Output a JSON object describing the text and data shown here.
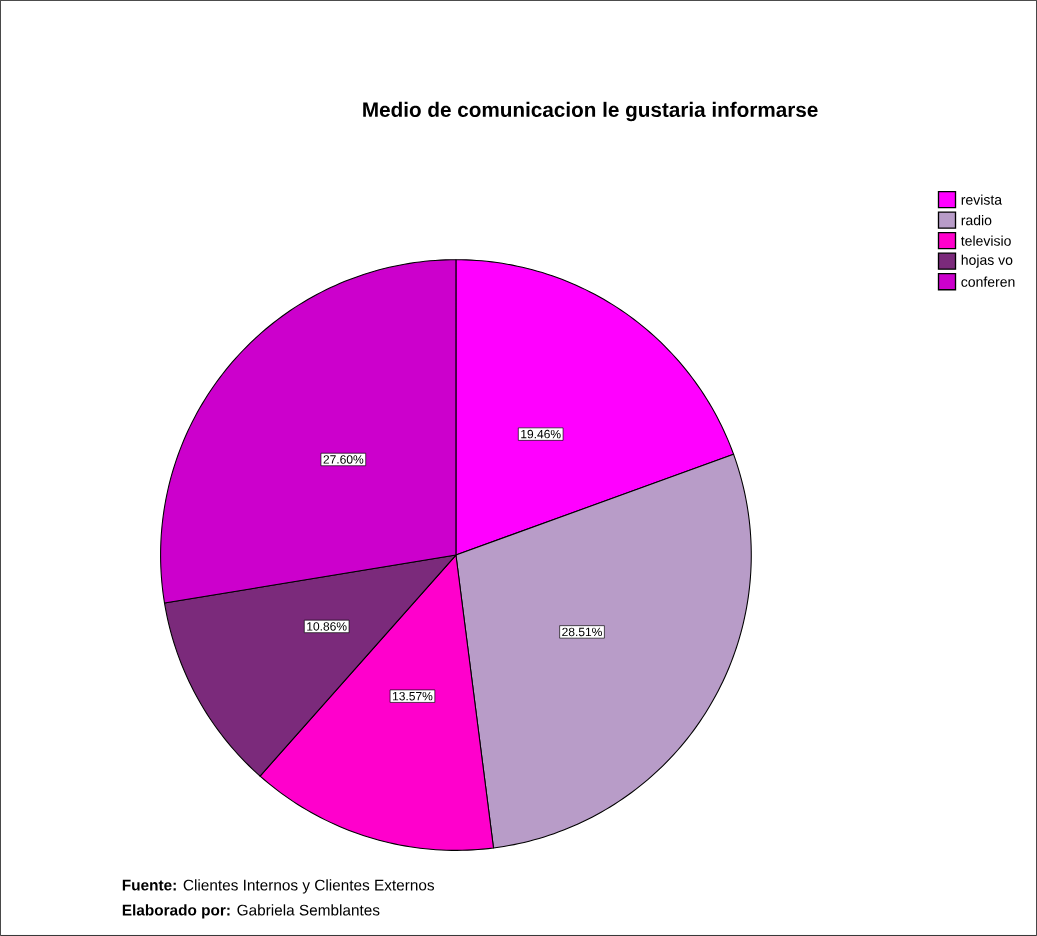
{
  "chart_data": {
    "type": "pie",
    "title": "Medio de comunicacion le gustaria informarse",
    "categories": [
      "revista",
      "radio",
      "televisio",
      "hojas vo",
      "conferen"
    ],
    "values": [
      19.46,
      28.51,
      13.57,
      10.86,
      27.6
    ],
    "colors": [
      "#ff00ff",
      "#b89cc8",
      "#ff00cc",
      "#7b2a7b",
      "#cc00cc"
    ],
    "value_labels": [
      "19.46%",
      "28.51%",
      "13.57%",
      "10.86%",
      "27.60%"
    ],
    "legend": "top right",
    "annotations": [
      "**Fuente:** Clientes Internos y Clientes Externos",
      "**Elaborado por:** Gabriela Semblantes"
    ]
  }
}
